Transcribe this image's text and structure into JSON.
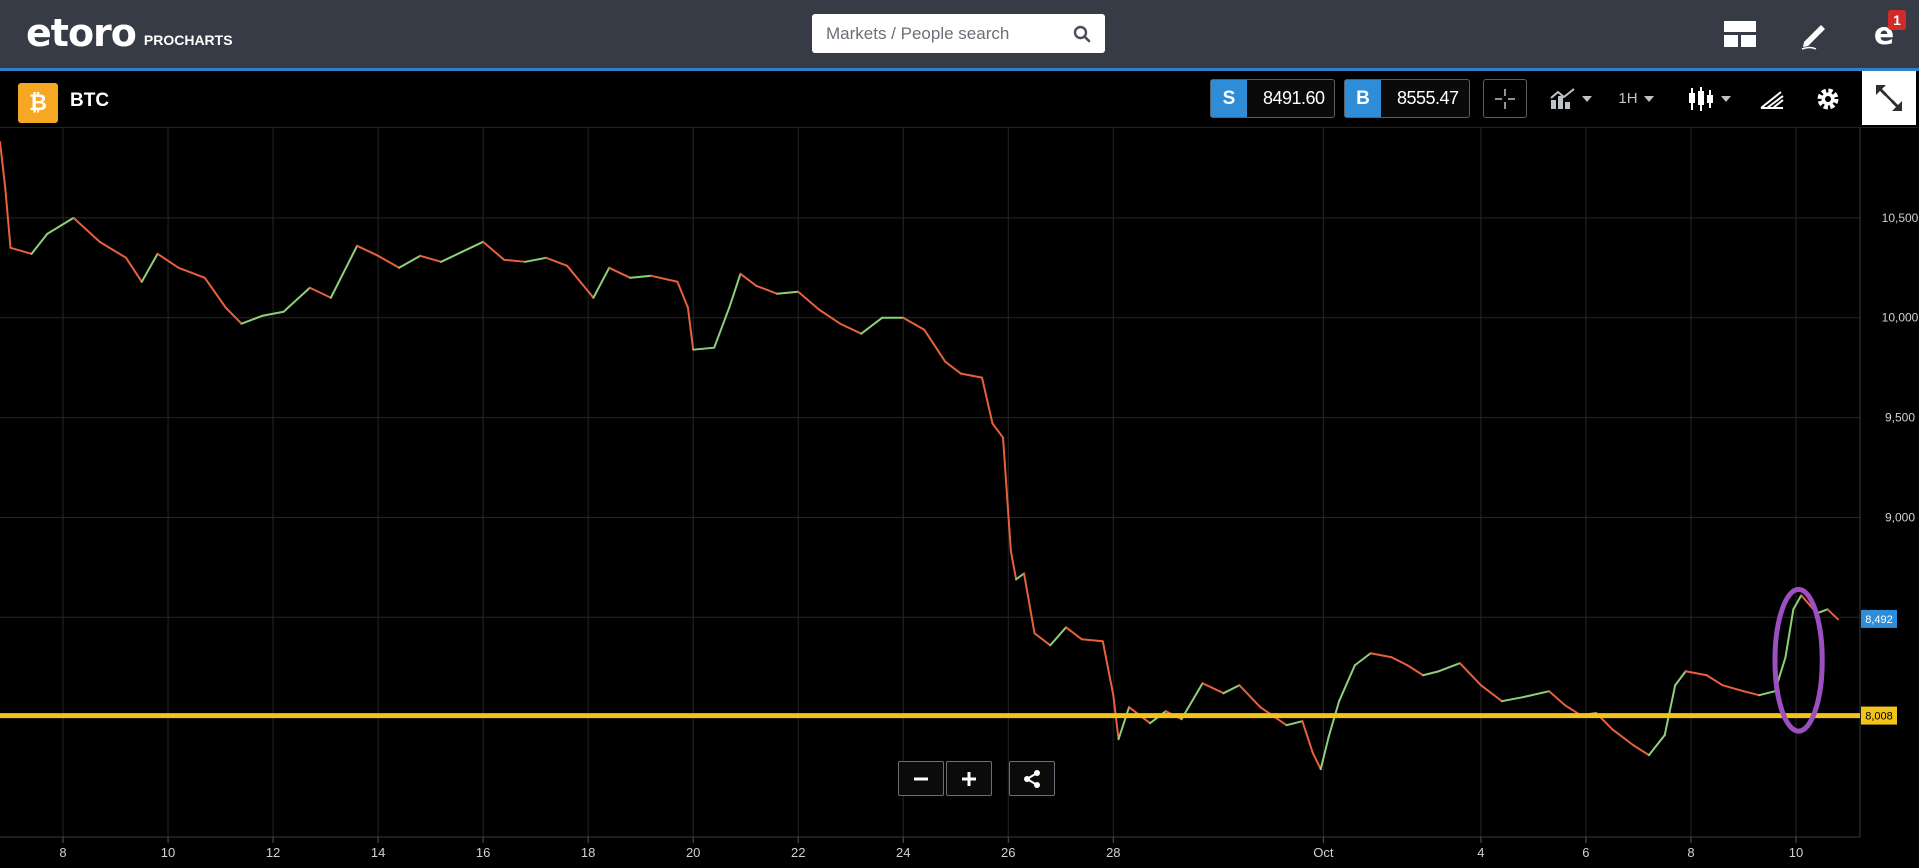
{
  "header": {
    "logo_text": "etoro",
    "logo_sub": "PROCHARTS",
    "search_placeholder": "Markets / People search",
    "notification_count": "1"
  },
  "instrument": {
    "symbol": "BTC",
    "sell_label": "S",
    "sell_price": "8491.60",
    "buy_label": "B",
    "buy_price": "8555.47",
    "timeframe": "1H"
  },
  "colors": {
    "up": "#8ed07a",
    "down": "#e8603c",
    "support_line": "#f2c318",
    "current_price_tag": "#2f8dd8",
    "highlight_ellipse": "#9b4fc1",
    "grid": "#262626"
  },
  "chart_data": {
    "type": "line",
    "title": "",
    "xlabel": "",
    "ylabel": "",
    "ylim": [
      7400,
      10950
    ],
    "y_ticks": [
      "10,500",
      "10,000",
      "9,500",
      "9,000"
    ],
    "x_ticks": [
      "8",
      "10",
      "12",
      "14",
      "16",
      "18",
      "20",
      "22",
      "24",
      "26",
      "28",
      "Oct",
      "4",
      "6",
      "8",
      "10"
    ],
    "x_tick_days": [
      -23,
      -21,
      -19,
      -17,
      -15,
      -13,
      -11,
      -9,
      -7,
      -5,
      -3,
      1,
      4,
      6,
      8,
      10
    ],
    "x_range_days": [
      -24.2,
      11.2
    ],
    "series": [
      {
        "name": "BTC",
        "points": [
          [
            -24.2,
            10880
          ],
          [
            -24.1,
            10650
          ],
          [
            -24.0,
            10350
          ],
          [
            -23.6,
            10320
          ],
          [
            -23.3,
            10420
          ],
          [
            -22.8,
            10500
          ],
          [
            -22.3,
            10380
          ],
          [
            -21.8,
            10300
          ],
          [
            -21.5,
            10180
          ],
          [
            -21.2,
            10320
          ],
          [
            -20.8,
            10250
          ],
          [
            -20.3,
            10200
          ],
          [
            -19.9,
            10050
          ],
          [
            -19.6,
            9970
          ],
          [
            -19.2,
            10010
          ],
          [
            -18.8,
            10030
          ],
          [
            -18.3,
            10150
          ],
          [
            -17.9,
            10100
          ],
          [
            -17.4,
            10360
          ],
          [
            -17.0,
            10310
          ],
          [
            -16.6,
            10250
          ],
          [
            -16.2,
            10310
          ],
          [
            -15.8,
            10280
          ],
          [
            -15.4,
            10330
          ],
          [
            -15.0,
            10380
          ],
          [
            -14.6,
            10290
          ],
          [
            -14.2,
            10280
          ],
          [
            -13.8,
            10300
          ],
          [
            -13.4,
            10260
          ],
          [
            -12.9,
            10100
          ],
          [
            -12.6,
            10250
          ],
          [
            -12.2,
            10200
          ],
          [
            -11.8,
            10210
          ],
          [
            -11.3,
            10180
          ],
          [
            -11.1,
            10050
          ],
          [
            -11.0,
            9840
          ],
          [
            -10.6,
            9850
          ],
          [
            -10.3,
            10060
          ],
          [
            -10.1,
            10220
          ],
          [
            -9.8,
            10160
          ],
          [
            -9.4,
            10120
          ],
          [
            -9.0,
            10130
          ],
          [
            -8.6,
            10040
          ],
          [
            -8.2,
            9970
          ],
          [
            -7.8,
            9920
          ],
          [
            -7.4,
            10000
          ],
          [
            -7.0,
            10000
          ],
          [
            -6.6,
            9940
          ],
          [
            -6.2,
            9780
          ],
          [
            -5.9,
            9720
          ],
          [
            -5.5,
            9700
          ],
          [
            -5.3,
            9470
          ],
          [
            -5.1,
            9400
          ],
          [
            -4.95,
            8830
          ],
          [
            -4.85,
            8690
          ],
          [
            -4.7,
            8720
          ],
          [
            -4.5,
            8420
          ],
          [
            -4.2,
            8360
          ],
          [
            -3.9,
            8450
          ],
          [
            -3.6,
            8390
          ],
          [
            -3.2,
            8380
          ],
          [
            -3.0,
            8110
          ],
          [
            -2.9,
            7890
          ],
          [
            -2.7,
            8050
          ],
          [
            -2.3,
            7970
          ],
          [
            -2.0,
            8030
          ],
          [
            -1.7,
            7990
          ],
          [
            -1.3,
            8170
          ],
          [
            -0.9,
            8120
          ],
          [
            -0.6,
            8160
          ],
          [
            -0.2,
            8050
          ],
          [
            0.3,
            7960
          ],
          [
            0.6,
            7980
          ],
          [
            0.8,
            7820
          ],
          [
            0.95,
            7740
          ],
          [
            1.1,
            7900
          ],
          [
            1.3,
            8080
          ],
          [
            1.6,
            8260
          ],
          [
            1.9,
            8320
          ],
          [
            2.3,
            8300
          ],
          [
            2.6,
            8260
          ],
          [
            2.9,
            8210
          ],
          [
            3.2,
            8230
          ],
          [
            3.6,
            8270
          ],
          [
            4.0,
            8160
          ],
          [
            4.4,
            8080
          ],
          [
            4.8,
            8100
          ],
          [
            5.3,
            8130
          ],
          [
            5.6,
            8060
          ],
          [
            5.9,
            8010
          ],
          [
            6.2,
            8020
          ],
          [
            6.5,
            7940
          ],
          [
            6.9,
            7860
          ],
          [
            7.2,
            7810
          ],
          [
            7.5,
            7910
          ],
          [
            7.7,
            8160
          ],
          [
            7.9,
            8230
          ],
          [
            8.3,
            8210
          ],
          [
            8.6,
            8160
          ],
          [
            9.0,
            8130
          ],
          [
            9.3,
            8110
          ],
          [
            9.6,
            8130
          ],
          [
            9.8,
            8300
          ],
          [
            9.95,
            8540
          ],
          [
            10.1,
            8610
          ],
          [
            10.4,
            8520
          ],
          [
            10.6,
            8540
          ],
          [
            10.8,
            8490
          ]
        ]
      }
    ],
    "support_level": 8008,
    "support_label": "8,008",
    "current_price_label": "8,492",
    "current_price": 8492,
    "highlight_center": [
      10.05,
      8285
    ],
    "highlight_radius": [
      0.45,
      355
    ]
  }
}
